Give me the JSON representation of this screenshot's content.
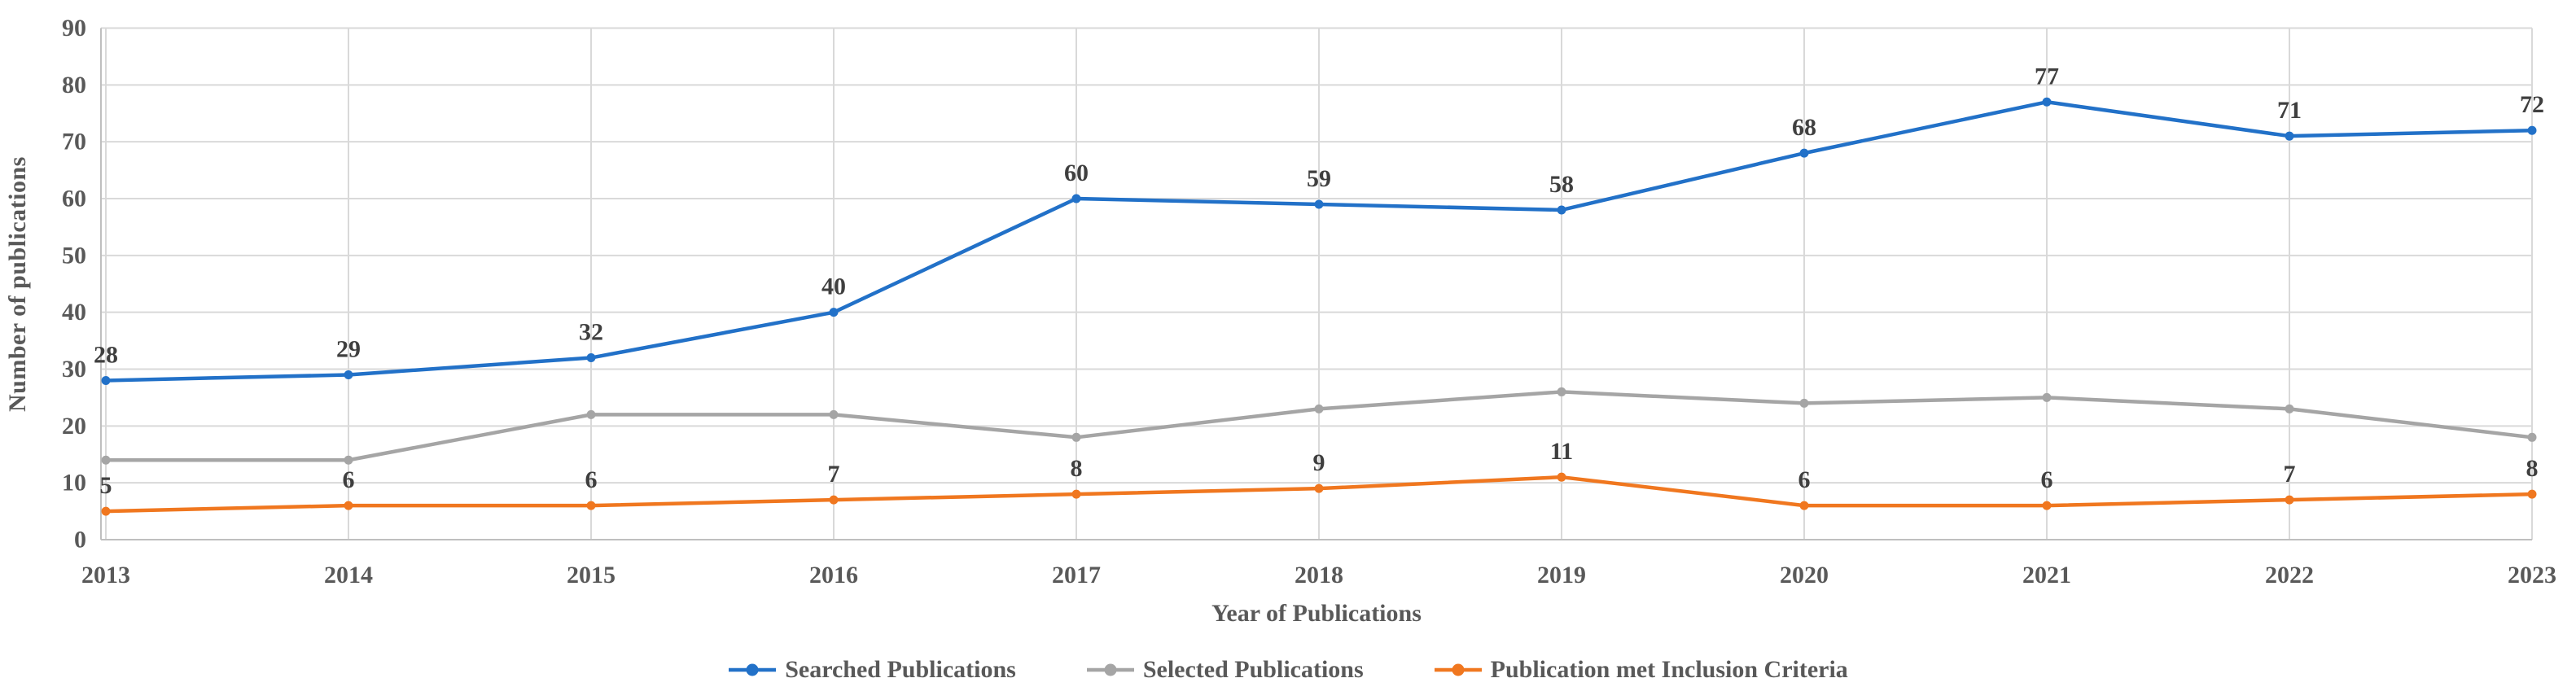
{
  "chart_data": {
    "type": "line",
    "title": "",
    "categories": [
      "2013",
      "2014",
      "2015",
      "2016",
      "2017",
      "2018",
      "2019",
      "2020",
      "2021",
      "2022",
      "2023"
    ],
    "series": [
      {
        "name": "Searched Publications",
        "color": "#2271C8",
        "values": [
          28,
          29,
          32,
          40,
          60,
          59,
          58,
          68,
          77,
          71,
          72
        ],
        "show_point_labels": true
      },
      {
        "name": "Selected Publications",
        "color": "#A5A5A5",
        "values": [
          14,
          14,
          22,
          22,
          18,
          23,
          26,
          24,
          25,
          23,
          18
        ],
        "show_point_labels": false
      },
      {
        "name": "Publication met Inclusion Criteria",
        "color": "#F0771F",
        "values": [
          5,
          6,
          6,
          7,
          8,
          9,
          11,
          6,
          6,
          7,
          8
        ],
        "show_point_labels": true
      }
    ],
    "xlabel": "Year of Publications",
    "ylabel": "Number of publications",
    "ylim": [
      0,
      90
    ],
    "ytick_step": 10,
    "grid": "horizontal and vertical major gridlines",
    "legend_position": "bottom",
    "marker": "circle"
  },
  "colors": {
    "gridline": "#D9D9D9",
    "axis_line": "#BFBFBF",
    "tick_label": "#595959",
    "data_label": "#3F3F3F"
  }
}
